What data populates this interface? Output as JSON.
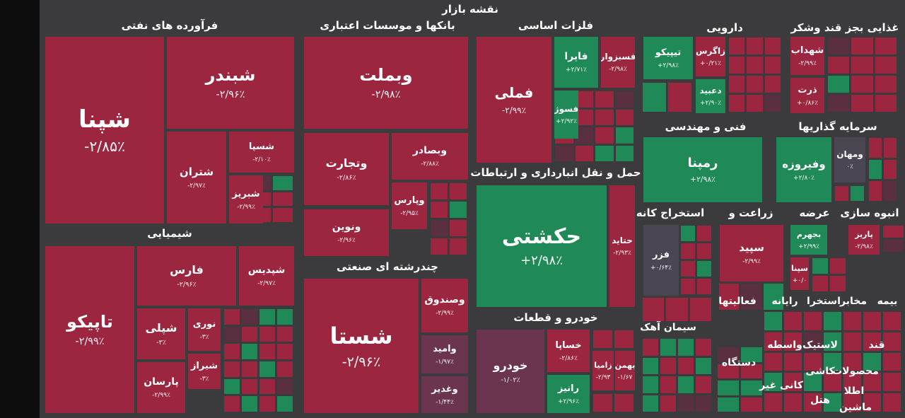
{
  "title": "نقشه بازار",
  "sectors": [
    {
      "title": "فرآورده های نفتی",
      "tiles": [
        {
          "name": "شپنا",
          "change": "-۲/۸۵٪"
        },
        {
          "name": "شبندر",
          "change": "-۲/۹۶٪"
        },
        {
          "name": "شتران",
          "change": "-۲/۹۷٪"
        },
        {
          "name": "شسپا",
          "change": "-۲/۱۰٪"
        },
        {
          "name": "شبریز",
          "change": "-۲/۹۹٪"
        }
      ]
    },
    {
      "title": "شیمیایی",
      "tiles": [
        {
          "name": "تاپیکو",
          "change": "-۲/۹۹٪"
        },
        {
          "name": "فارس",
          "change": "-۲/۹۶٪"
        },
        {
          "name": "شپدیس",
          "change": "-۲/۹۷٪"
        },
        {
          "name": "شپلی",
          "change": "-۳٪"
        },
        {
          "name": "نوری",
          "change": "-۳٪"
        },
        {
          "name": "شیراز",
          "change": "-۳٪"
        },
        {
          "name": "پارسان",
          "change": "-۲/۹۹٪"
        }
      ]
    },
    {
      "title": "بانکها و موسسات اعتباری",
      "tiles": [
        {
          "name": "وبملت",
          "change": "-۲/۹۸٪"
        },
        {
          "name": "وتجارت",
          "change": "-۲/۸۶٪"
        },
        {
          "name": "وبصادر",
          "change": "-۲/۸۸٪"
        },
        {
          "name": "وپارس",
          "change": "-۲/۹۵٪"
        },
        {
          "name": "ونوین",
          "change": "-۲/۹۶٪"
        }
      ]
    },
    {
      "title": "چندرشته ای صنعتی",
      "tiles": [
        {
          "name": "شستا",
          "change": "-۲/۹۶٪"
        },
        {
          "name": "وصندوق",
          "change": "-۲/۹۹٪"
        },
        {
          "name": "وامید",
          "change": "-۱/۹۷٪"
        },
        {
          "name": "وغدیر",
          "change": "-۱/۴۴٪"
        }
      ]
    },
    {
      "title": "فلزات اساسی",
      "tiles": [
        {
          "name": "فملی",
          "change": "-۲/۹۹٪"
        },
        {
          "name": "فایرا",
          "change": "+۲/۷۱٪"
        },
        {
          "name": "فسبزوار",
          "change": "-۲/۹۸٪"
        },
        {
          "name": "فسوژ",
          "change": "+۲/۹۲٪"
        }
      ]
    },
    {
      "title": "حمل و نقل انبارداری و ارتباطات",
      "tiles": [
        {
          "name": "حکشتی",
          "change": "+۲/۹۸٪"
        },
        {
          "name": "حتاید",
          "change": "-۲/۹۳٪"
        }
      ]
    },
    {
      "title": "خودرو و قطعات",
      "tiles": [
        {
          "name": "خودرو",
          "change": "-۱/۰۲٪"
        },
        {
          "name": "خساپا",
          "change": "-۲/۸۶٪"
        },
        {
          "name": "رانیز",
          "change": "+۲/۹۶٪"
        },
        {
          "name": "زامیا",
          "change": "-۲/۹۳"
        },
        {
          "name": "بهمن",
          "change": "-۱/۶۷"
        }
      ]
    },
    {
      "title": "دارویی",
      "tiles": [
        {
          "name": "تیپیکو",
          "change": "+۲/۹۸٪"
        },
        {
          "name": "زاگرس",
          "change": "+۰/۲۱٪"
        },
        {
          "name": "دعبید",
          "change": "+۲/۹۰٪"
        }
      ]
    },
    {
      "title": "غذایی بجز قند وشکر",
      "tiles": [
        {
          "name": "شهداب",
          "change": "-۲/۹۹٪"
        },
        {
          "name": "ذرت",
          "change": "+۰/۸۶٪"
        }
      ]
    },
    {
      "title": "فنی و مهندسی",
      "tiles": [
        {
          "name": "رمپنا",
          "change": "+۲/۹۸٪"
        }
      ]
    },
    {
      "title": "سرمایه گذاریها",
      "tiles": [
        {
          "name": "وفیروزه",
          "change": "+۲/۸۰٪"
        },
        {
          "name": "ومهان",
          "change": "۰٪"
        }
      ]
    },
    {
      "title": "استخراج کانه",
      "tiles": [
        {
          "name": "فزر",
          "change": "+۰/۶۴٪"
        }
      ]
    },
    {
      "title": "زراعت و",
      "tiles": [
        {
          "name": "سپید",
          "change": "-۲/۹۹٪"
        }
      ]
    },
    {
      "title": "عرضه",
      "tiles": [
        {
          "name": "بجهرم",
          "change": "+۲/۹۹٪"
        },
        {
          "name": "سپنا",
          "change": "+۰/۰"
        }
      ]
    },
    {
      "title": "انبوه سازی",
      "tiles": [
        {
          "name": "پاریز",
          "change": "-۲/۹۸٪"
        }
      ]
    }
  ],
  "other_labels": [
    "فعالیتها",
    "رایانه",
    "استخرا",
    "مخابر",
    "بیمه",
    "سیمان آهک",
    "واسطه",
    "لاستیک",
    "قند",
    "دستگاه",
    "کانی غیر",
    "کاشی",
    "هتل",
    "محصولات",
    "اطلا",
    "ماشین"
  ]
}
